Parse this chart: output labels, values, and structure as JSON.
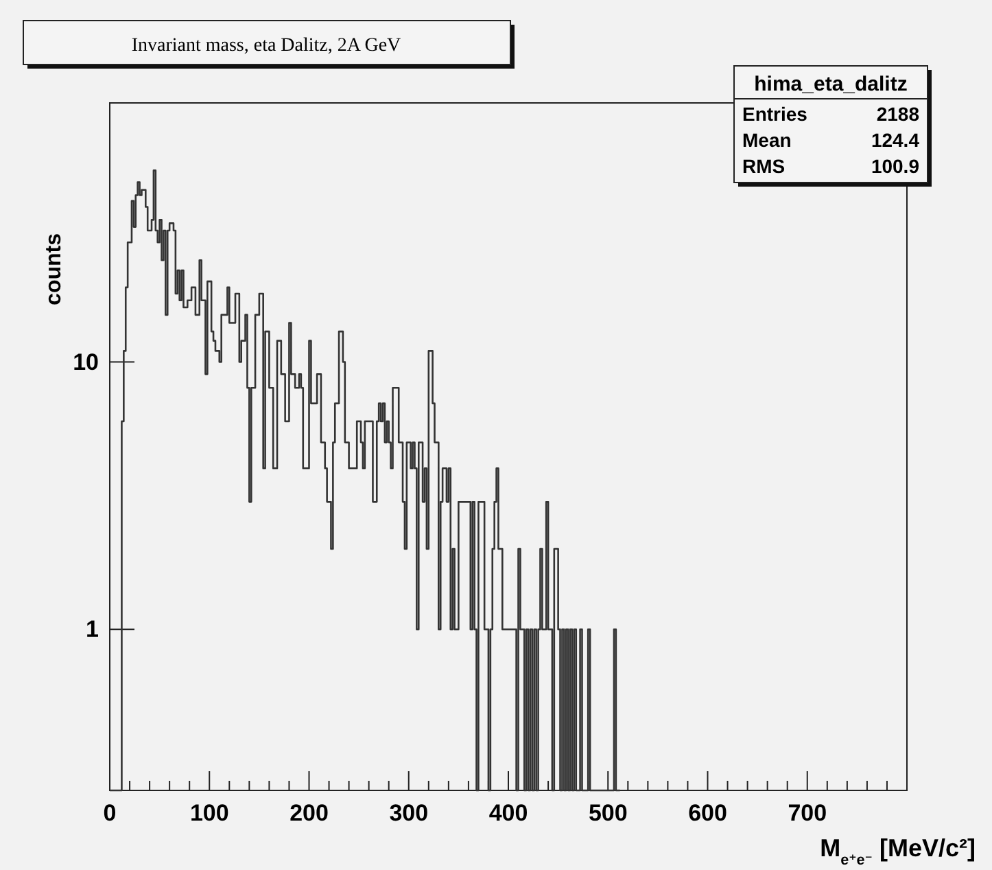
{
  "chart_data": {
    "type": "histogram",
    "title": "Invariant mass, eta Dalitz, 2A GeV",
    "xlabel": "M$_{e⁺e⁻}$ [MeV/c²]",
    "ylabel": "counts",
    "color": "#333333",
    "log": true,
    "grid": false,
    "annotations": [
      "hima_eta_dalitz",
      "Entries 2188",
      "Mean 124.4",
      "RMS 100.9"
    ],
    "xlim": [
      0,
      800
    ],
    "ylim": [
      0.25,
      93
    ],
    "xticks": [
      0,
      {
        "value": 20,
        "label": null
      },
      {
        "value": 40,
        "label": null
      },
      {
        "value": 60,
        "label": null
      },
      {
        "value": 80,
        "label": null
      },
      100,
      {
        "value": 120,
        "label": null
      },
      {
        "value": 140,
        "label": null
      },
      {
        "value": 160,
        "label": null
      },
      {
        "value": 180,
        "label": null
      },
      200,
      {
        "value": 220,
        "label": null
      },
      {
        "value": 240,
        "label": null
      },
      {
        "value": 260,
        "label": null
      },
      {
        "value": 280,
        "label": null
      },
      300,
      {
        "value": 320,
        "label": null
      },
      {
        "value": 340,
        "label": null
      },
      {
        "value": 360,
        "label": null
      },
      {
        "value": 380,
        "label": null
      },
      400,
      {
        "value": 420,
        "label": null
      },
      {
        "value": 440,
        "label": null
      },
      {
        "value": 460,
        "label": null
      },
      {
        "value": 480,
        "label": null
      },
      500,
      {
        "value": 520,
        "label": null
      },
      {
        "value": 540,
        "label": null
      },
      {
        "value": 560,
        "label": null
      },
      {
        "value": 580,
        "label": null
      },
      600,
      {
        "value": 620,
        "label": null
      },
      {
        "value": 640,
        "label": null
      },
      {
        "value": 660,
        "label": null
      },
      {
        "value": 680,
        "label": null
      },
      700,
      {
        "value": 720,
        "label": null
      },
      {
        "value": 740,
        "label": null
      },
      {
        "value": 760,
        "label": null
      },
      {
        "value": 780,
        "label": null
      }
    ],
    "yticks": [
      1,
      10
    ],
    "bins": [
      0,
      2,
      4,
      6,
      8,
      10,
      12,
      14,
      16,
      18,
      20,
      22,
      24,
      26,
      28,
      30,
      32,
      34,
      36,
      38,
      40,
      42,
      44,
      46,
      48,
      50,
      52,
      54,
      56,
      58,
      60,
      62,
      64,
      66,
      68,
      70,
      72,
      74,
      76,
      78,
      80,
      82,
      84,
      86,
      88,
      90,
      92,
      94,
      96,
      98,
      100,
      102,
      104,
      106,
      108,
      110,
      112,
      114,
      116,
      118,
      120,
      122,
      124,
      126,
      128,
      130,
      132,
      134,
      136,
      138,
      140,
      142,
      144,
      146,
      148,
      150,
      152,
      154,
      156,
      158,
      160,
      162,
      164,
      166,
      168,
      170,
      172,
      174,
      176,
      178,
      180,
      182,
      184,
      186,
      188,
      190,
      192,
      194,
      196,
      198,
      200,
      202,
      204,
      206,
      208,
      210,
      212,
      214,
      216,
      218,
      220,
      222,
      224,
      226,
      228,
      230,
      232,
      234,
      236,
      238,
      240,
      242,
      244,
      246,
      248,
      250,
      252,
      254,
      256,
      258,
      260,
      262,
      264,
      266,
      268,
      270,
      272,
      274,
      276,
      278,
      280,
      282,
      284,
      286,
      288,
      290,
      292,
      294,
      296,
      298,
      300,
      302,
      304,
      306,
      308,
      310,
      312,
      314,
      316,
      318,
      320,
      322,
      324,
      326,
      328,
      330,
      332,
      334,
      336,
      338,
      340,
      342,
      344,
      346,
      348,
      350,
      352,
      354,
      356,
      358,
      360,
      362,
      364,
      366,
      368,
      370,
      372,
      374,
      376,
      378,
      380,
      382,
      384,
      386,
      388,
      390,
      392,
      394,
      396,
      398,
      400,
      402,
      404,
      406,
      408,
      410,
      412,
      414,
      416,
      418,
      420,
      422,
      424,
      426,
      428,
      430,
      432,
      434,
      436,
      438,
      440,
      442,
      444,
      446,
      448,
      450,
      452,
      454,
      456,
      458,
      460,
      462,
      464,
      466,
      468,
      470,
      472,
      474,
      476,
      478,
      480,
      482,
      484,
      486,
      488,
      490,
      492,
      494,
      496,
      498,
      500,
      502,
      504,
      506,
      508,
      510,
      512
    ],
    "values": [
      null,
      null,
      null,
      null,
      null,
      null,
      6,
      11,
      19,
      28,
      28,
      40,
      32,
      42,
      47,
      42,
      44,
      44,
      38,
      31,
      31,
      34,
      52,
      31,
      28,
      34,
      24,
      31,
      15,
      31,
      33,
      33,
      31,
      18,
      22,
      17,
      22,
      16,
      16,
      17,
      17,
      19,
      19,
      15,
      15,
      24,
      17,
      17,
      9,
      20,
      20,
      13,
      12,
      11,
      11,
      10,
      15,
      15,
      15,
      19,
      14,
      14,
      14,
      18,
      18,
      10,
      12,
      12,
      15,
      8,
      3,
      8,
      8,
      15,
      15,
      18,
      18,
      4,
      13,
      13,
      8,
      8,
      4,
      4,
      12,
      12,
      9,
      9,
      6,
      6,
      14,
      9,
      9,
      8,
      8,
      9,
      8,
      4,
      4,
      4,
      12,
      7,
      7,
      7,
      9,
      9,
      5,
      5,
      4,
      3,
      3,
      2,
      5,
      7,
      7,
      13,
      13,
      10,
      5,
      5,
      4,
      4,
      4,
      4,
      6,
      6,
      5,
      4,
      6,
      6,
      6,
      6,
      3,
      3,
      6,
      7,
      6,
      7,
      5,
      6,
      5,
      4,
      8,
      8,
      8,
      5,
      5,
      3,
      2,
      5,
      5,
      4,
      5,
      4,
      1,
      5,
      5,
      3,
      4,
      2,
      11,
      11,
      7,
      5,
      5,
      1,
      3,
      4,
      4,
      3,
      4,
      1,
      2,
      1,
      1,
      3,
      3,
      3,
      3,
      3,
      3,
      1,
      3,
      1,
      null,
      3,
      3,
      3,
      1,
      1,
      null,
      1,
      2,
      3,
      4,
      2,
      2,
      1,
      1,
      1,
      1,
      1,
      1,
      1,
      null,
      2,
      1,
      1,
      null,
      1,
      null,
      1,
      null,
      1,
      null,
      1,
      2,
      1,
      1,
      3,
      1,
      1,
      null,
      2,
      2,
      1,
      null,
      1,
      null,
      1,
      null,
      1,
      null,
      1,
      null,
      null,
      1,
      null,
      null,
      null,
      1,
      null,
      null,
      null,
      null,
      null,
      null,
      null,
      null,
      null,
      null,
      null,
      null,
      1,
      null,
      null
    ]
  }
}
